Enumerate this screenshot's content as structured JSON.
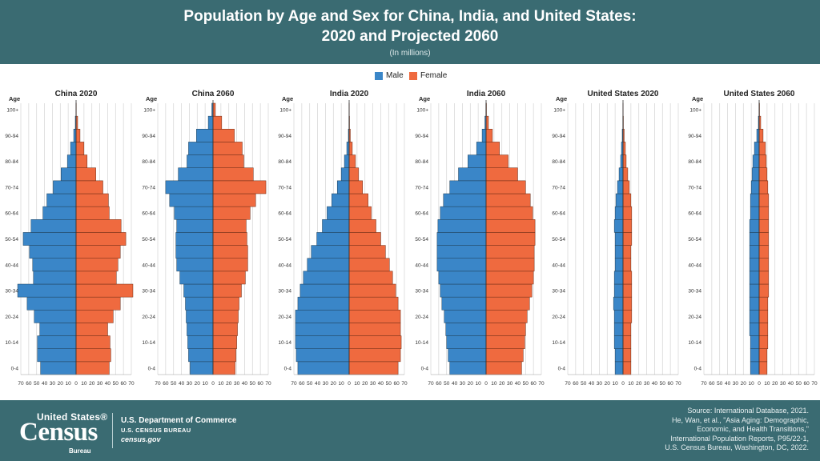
{
  "title_line1": "Population by Age and Sex for China, India, and United States:",
  "title_line2": "2020 and Projected 2060",
  "subtitle": "(In millions)",
  "legend": [
    {
      "label": "Male",
      "color": "#3a86c8"
    },
    {
      "label": "Female",
      "color": "#ef6a3f"
    }
  ],
  "footer": {
    "logo_top": "United States®",
    "logo_main": "Census",
    "logo_sub": "Bureau",
    "dept": "U.S. Department of Commerce",
    "bureau": "U.S. CENSUS BUREAU",
    "site": "census.gov",
    "source_lines": [
      "Source: International Database, 2021.",
      "He, Wan, et al., \"Asia Aging: Demographic,",
      "Economic, and Health Transitions,\"",
      "International Population Reports, P95/22-1,",
      "U.S. Census Bureau, Washington, DC, 2022."
    ]
  },
  "chart_data": [
    {
      "type": "bar",
      "title": "China 2020",
      "ylabel": "Age",
      "age_groups": [
        "0-4",
        "5-9",
        "10-14",
        "15-19",
        "20-24",
        "25-29",
        "30-34",
        "35-39",
        "40-44",
        "45-49",
        "50-54",
        "55-59",
        "60-64",
        "65-69",
        "70-74",
        "75-79",
        "80-84",
        "85-89",
        "90-94",
        "95-99",
        "100+"
      ],
      "age_tick_labels": [
        "0-4",
        "10-14",
        "20-24",
        "30-34",
        "40-44",
        "50-54",
        "60-64",
        "70-74",
        "80-84",
        "90-94",
        "100+"
      ],
      "xlim": [
        -70,
        70
      ],
      "x_tick_labels": [
        "70",
        "60",
        "50",
        "40",
        "30",
        "20",
        "10",
        "0",
        "10",
        "20",
        "30",
        "40",
        "50",
        "60",
        "70"
      ],
      "series": [
        {
          "name": "Male",
          "values": [
            45,
            49,
            49,
            46,
            53,
            62,
            74,
            54,
            55,
            59,
            67,
            57,
            42,
            37,
            29,
            19,
            11,
            7,
            3,
            1,
            0.2
          ]
        },
        {
          "name": "Female",
          "values": [
            42,
            44,
            43,
            40,
            47,
            56,
            72,
            51,
            53,
            56,
            63,
            57,
            42,
            41,
            34,
            25,
            14,
            10,
            5,
            2,
            0.3
          ]
        }
      ]
    },
    {
      "type": "bar",
      "title": "China 2060",
      "ylabel": "Age",
      "age_groups": [
        "0-4",
        "5-9",
        "10-14",
        "15-19",
        "20-24",
        "25-29",
        "30-34",
        "35-39",
        "40-44",
        "45-49",
        "50-54",
        "55-59",
        "60-64",
        "65-69",
        "70-74",
        "75-79",
        "80-84",
        "85-89",
        "90-94",
        "95-99",
        "100+"
      ],
      "age_tick_labels": [
        "0-4",
        "10-14",
        "20-24",
        "30-34",
        "40-44",
        "50-54",
        "60-64",
        "70-74",
        "80-84",
        "90-94",
        "100+"
      ],
      "xlim": [
        -70,
        70
      ],
      "x_tick_labels": [
        "70",
        "60",
        "50",
        "40",
        "30",
        "20",
        "10",
        "0",
        "10",
        "20",
        "30",
        "40",
        "50",
        "60",
        "70"
      ],
      "series": [
        {
          "name": "Male",
          "values": [
            29,
            31,
            32,
            33,
            34,
            35,
            37,
            42,
            46,
            47,
            47,
            46,
            49,
            55,
            60,
            44,
            33,
            31,
            21,
            6,
            1.5
          ]
        },
        {
          "name": "Female",
          "values": [
            28,
            29,
            30,
            31,
            32,
            33,
            36,
            41,
            44,
            44,
            43,
            42,
            47,
            54,
            67,
            51,
            39,
            37,
            27,
            11,
            3
          ]
        }
      ]
    },
    {
      "type": "bar",
      "title": "India 2020",
      "ylabel": "Age",
      "age_groups": [
        "0-4",
        "5-9",
        "10-14",
        "15-19",
        "20-24",
        "25-29",
        "30-34",
        "35-39",
        "40-44",
        "45-49",
        "50-54",
        "55-59",
        "60-64",
        "65-69",
        "70-74",
        "75-79",
        "80-84",
        "85-89",
        "90-94",
        "95-99",
        "100+"
      ],
      "age_tick_labels": [
        "0-4",
        "10-14",
        "20-24",
        "30-34",
        "40-44",
        "50-54",
        "60-64",
        "70-74",
        "80-84",
        "90-94",
        "100+"
      ],
      "xlim": [
        -70,
        70
      ],
      "x_tick_labels": [
        "70",
        "60",
        "50",
        "40",
        "30",
        "20",
        "10",
        "0",
        "10",
        "20",
        "30",
        "40",
        "50",
        "60",
        "70"
      ],
      "series": [
        {
          "name": "Male",
          "values": [
            65,
            67,
            68,
            68,
            68,
            65,
            62,
            58,
            53,
            48,
            41,
            34,
            28,
            22,
            15,
            10,
            6,
            3,
            1,
            0.3,
            0.1
          ]
        },
        {
          "name": "Female",
          "values": [
            62,
            65,
            66,
            65,
            65,
            62,
            59,
            55,
            51,
            46,
            40,
            34,
            28,
            24,
            17,
            12,
            8,
            4,
            1.5,
            0.5,
            0.1
          ]
        }
      ]
    },
    {
      "type": "bar",
      "title": "India 2060",
      "ylabel": "Age",
      "age_groups": [
        "0-4",
        "5-9",
        "10-14",
        "15-19",
        "20-24",
        "25-29",
        "30-34",
        "35-39",
        "40-44",
        "45-49",
        "50-54",
        "55-59",
        "60-64",
        "65-69",
        "70-74",
        "75-79",
        "80-84",
        "85-89",
        "90-94",
        "95-99",
        "100+"
      ],
      "age_tick_labels": [
        "0-4",
        "10-14",
        "20-24",
        "30-34",
        "40-44",
        "50-54",
        "60-64",
        "70-74",
        "80-84",
        "90-94",
        "100+"
      ],
      "xlim": [
        -70,
        70
      ],
      "x_tick_labels": [
        "70",
        "60",
        "50",
        "40",
        "30",
        "20",
        "10",
        "0",
        "10",
        "20",
        "30",
        "40",
        "50",
        "60",
        "70"
      ],
      "series": [
        {
          "name": "Male",
          "values": [
            46,
            48,
            50,
            51,
            53,
            56,
            58,
            60,
            62,
            62,
            62,
            61,
            58,
            54,
            46,
            35,
            23,
            12,
            5,
            1.5,
            0.3
          ]
        },
        {
          "name": "Female",
          "values": [
            45,
            47,
            49,
            50,
            52,
            55,
            58,
            60,
            61,
            61,
            62,
            62,
            59,
            56,
            50,
            40,
            28,
            17,
            8,
            3,
            0.5
          ]
        }
      ]
    },
    {
      "type": "bar",
      "title": "United States 2020",
      "ylabel": "Age",
      "age_groups": [
        "0-4",
        "5-9",
        "10-14",
        "15-19",
        "20-24",
        "25-29",
        "30-34",
        "35-39",
        "40-44",
        "45-49",
        "50-54",
        "55-59",
        "60-64",
        "65-69",
        "70-74",
        "75-79",
        "80-84",
        "85-89",
        "90-94",
        "95-99",
        "100+"
      ],
      "age_tick_labels": [
        "0-4",
        "10-14",
        "20-24",
        "30-34",
        "40-44",
        "50-54",
        "60-64",
        "70-74",
        "80-84",
        "90-94",
        "100+"
      ],
      "xlim": [
        -70,
        70
      ],
      "x_tick_labels": [
        "70",
        "60",
        "50",
        "40",
        "30",
        "20",
        "10",
        "0",
        "10",
        "20",
        "30",
        "40",
        "50",
        "60",
        "70"
      ],
      "series": [
        {
          "name": "Male",
          "values": [
            10,
            10,
            11,
            11,
            11,
            12,
            11,
            11,
            10,
            10,
            10,
            11,
            10,
            9,
            7,
            5,
            3,
            2,
            1,
            0.3,
            0.05
          ]
        },
        {
          "name": "Female",
          "values": [
            10,
            10,
            10,
            10,
            11,
            11,
            11,
            11,
            10,
            10,
            11,
            11,
            11,
            10,
            8,
            6,
            4,
            3,
            1.5,
            0.5,
            0.1
          ]
        }
      ]
    },
    {
      "type": "bar",
      "title": "United States 2060",
      "ylabel": "Age",
      "age_groups": [
        "0-4",
        "5-9",
        "10-14",
        "15-19",
        "20-24",
        "25-29",
        "30-34",
        "35-39",
        "40-44",
        "45-49",
        "50-54",
        "55-59",
        "60-64",
        "65-69",
        "70-74",
        "75-79",
        "80-84",
        "85-89",
        "90-94",
        "95-99",
        "100+"
      ],
      "age_tick_labels": [
        "0-4",
        "10-14",
        "20-24",
        "30-34",
        "40-44",
        "50-54",
        "60-64",
        "70-74",
        "80-84",
        "90-94",
        "100+"
      ],
      "xlim": [
        -70,
        70
      ],
      "x_tick_labels": [
        "70",
        "60",
        "50",
        "40",
        "30",
        "20",
        "10",
        "0",
        "10",
        "20",
        "30",
        "40",
        "50",
        "60",
        "70"
      ],
      "series": [
        {
          "name": "Male",
          "values": [
            11,
            11,
            11,
            12,
            12,
            12,
            12,
            12,
            12,
            12,
            12,
            12,
            11,
            11,
            10,
            9,
            8,
            6,
            3,
            1,
            0.2
          ]
        },
        {
          "name": "Female",
          "values": [
            10,
            10,
            11,
            11,
            11,
            11,
            12,
            12,
            12,
            12,
            12,
            12,
            12,
            12,
            11,
            10,
            9,
            8,
            5,
            2,
            0.5
          ]
        }
      ]
    }
  ]
}
